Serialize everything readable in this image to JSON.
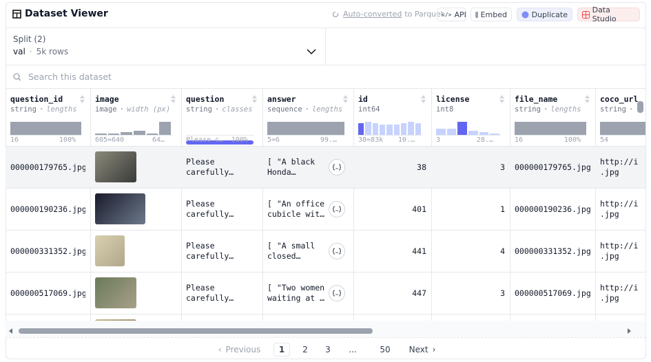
{
  "header": {
    "title": "Dataset Viewer",
    "converted_link": "Auto-converted",
    "converted_suffix": "to Parquet",
    "buttons": [
      "API",
      "Embed",
      "Duplicate",
      "Data Studio"
    ]
  },
  "separator": "·",
  "split": {
    "label": "Split (2)",
    "name": "val",
    "rows": "5k rows"
  },
  "search": {
    "placeholder": "Search this dataset"
  },
  "table": {
    "columns": [
      {
        "name": "question_id",
        "type": "string",
        "stat": "lengths",
        "min": "16",
        "max": "100%"
      },
      {
        "name": "image",
        "type": "image",
        "stat": "width (px)",
        "min": "605≈640",
        "max": "64…"
      },
      {
        "name": "question",
        "type": "string",
        "stat": "classes",
        "min": "Please c…",
        "max": "100%"
      },
      {
        "name": "answer",
        "type": "sequence",
        "stat": "lengths",
        "min": "5≈6",
        "max": "99.…"
      },
      {
        "name": "id",
        "type": "int64",
        "min": "38≈83k",
        "max": "10.…"
      },
      {
        "name": "license",
        "type": "int8",
        "min": "3",
        "max": "28.…"
      },
      {
        "name": "file_name",
        "type": "string",
        "stat": "lengths",
        "min": "16",
        "max": "100%"
      },
      {
        "name": "coco_url",
        "type": "string",
        "stat": "",
        "min": "54"
      }
    ],
    "rows": [
      {
        "question_id": "000000179765.jpg",
        "question": [
          "Please",
          "carefully…"
        ],
        "answer": [
          "[ \"A black",
          "Honda…"
        ],
        "id": 38,
        "license": 3,
        "file_name": "000000179765.jpg",
        "coco_url": [
          "http://i",
          ".jpg"
        ]
      },
      {
        "question_id": "000000190236.jpg",
        "question": [
          "Please",
          "carefully…"
        ],
        "answer": [
          "[ \"An office",
          "cubicle wit…"
        ],
        "id": 401,
        "license": 1,
        "file_name": "000000190236.jpg",
        "coco_url": [
          "http://i",
          ".jpg"
        ]
      },
      {
        "question_id": "000000331352.jpg",
        "question": [
          "Please",
          "carefully…"
        ],
        "answer": [
          "[ \"A small",
          "closed…"
        ],
        "id": 441,
        "license": 4,
        "file_name": "000000331352.jpg",
        "coco_url": [
          "http://i",
          ".jpg"
        ]
      },
      {
        "question_id": "000000517069.jpg",
        "question": [
          "Please",
          "carefully…"
        ],
        "answer": [
          "[ \"Two women",
          "waiting at …"
        ],
        "id": 447,
        "license": 3,
        "file_name": "000000517069.jpg",
        "coco_url": [
          "http://i",
          ".jpg"
        ]
      }
    ]
  },
  "pagination": {
    "previous": "Previous",
    "pages": [
      "1",
      "2",
      "3",
      "...",
      "50"
    ],
    "next": "Next"
  }
}
